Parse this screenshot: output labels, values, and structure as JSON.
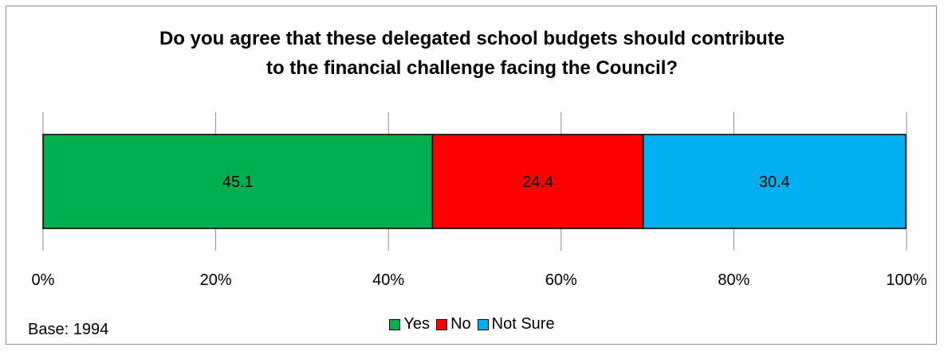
{
  "chart_data": {
    "type": "bar",
    "orientation": "horizontal",
    "stacked": "percent",
    "title_lines": [
      "Do you agree that these delegated school budgets should contribute",
      "to the financial challenge facing the Council?"
    ],
    "categories": [
      ""
    ],
    "series": [
      {
        "name": "Yes",
        "values": [
          45.1
        ],
        "color": "#00b050"
      },
      {
        "name": "No",
        "values": [
          24.4
        ],
        "color": "#ff0000"
      },
      {
        "name": "Not Sure",
        "values": [
          30.4
        ],
        "color": "#00b0f0"
      }
    ],
    "x_ticks": [
      "0%",
      "20%",
      "40%",
      "60%",
      "80%",
      "100%"
    ],
    "xlim": [
      0,
      100
    ],
    "grid": true,
    "legend_position": "bottom",
    "data_labels": [
      "45.1",
      "24.4",
      "30.4"
    ]
  },
  "footnote": "Base: 1994"
}
